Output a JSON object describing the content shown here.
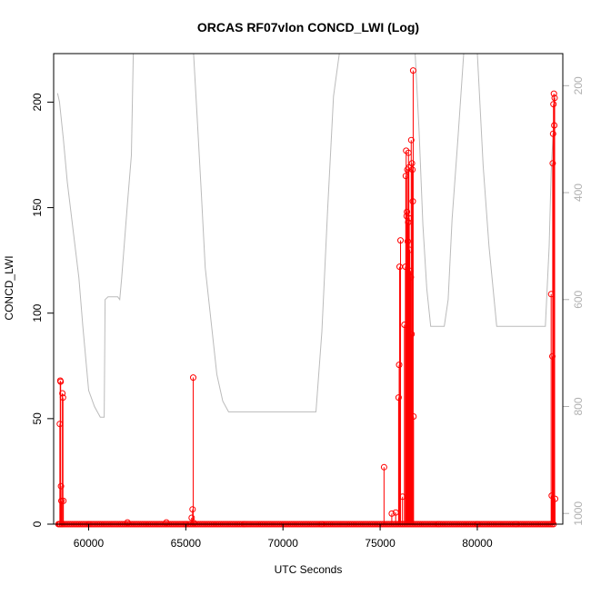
{
  "chart_data": {
    "type": "scatter",
    "title": "ORCAS RF07vlon CONCD_LWI (Log)",
    "xlabel": "UTC Seconds",
    "ylabel": "CONCD_LWI",
    "xlim": [
      58200,
      84400
    ],
    "ylim": [
      0,
      223
    ],
    "x_ticks": [
      60000,
      65000,
      70000,
      75000,
      80000
    ],
    "y_ticks": [
      0,
      50,
      100,
      150,
      200
    ],
    "y2_ticks": [
      200,
      400,
      600,
      800,
      1000
    ],
    "y2lim": [
      1020,
      140
    ],
    "series": [
      {
        "role": "primary",
        "color": "#ff0000",
        "x": [
          58500,
          58520,
          58540,
          58560,
          58580,
          58600,
          58620,
          58650,
          58680,
          58700,
          60000,
          62000,
          64000,
          65000,
          65300,
          65350,
          65380,
          65420,
          68000,
          72000,
          75200,
          75600,
          75800,
          75950,
          75980,
          76000,
          76050,
          76150,
          76250,
          76300,
          76320,
          76340,
          76360,
          76380,
          76400,
          76420,
          76440,
          76460,
          76480,
          76500,
          76520,
          76540,
          76560,
          76580,
          76600,
          76620,
          76640,
          76660,
          76680,
          76700,
          76720,
          78000,
          80000,
          82000,
          83800,
          83830,
          83860,
          83880,
          83900,
          83920,
          83940,
          83960,
          83980,
          84000
        ],
        "y": [
          0,
          47.5,
          68,
          67.5,
          18,
          11,
          0,
          62,
          60,
          11,
          0,
          0.8,
          0.8,
          0,
          3,
          7,
          69.5,
          0.5,
          0,
          0,
          27,
          5,
          5.5,
          60,
          75.5,
          122,
          134.5,
          13,
          94.5,
          122,
          165,
          177,
          146,
          148,
          168,
          134,
          143,
          176,
          169,
          145,
          130,
          27,
          120,
          117,
          182,
          90,
          171,
          168,
          153,
          215,
          51,
          0,
          0,
          0,
          109,
          13.5,
          79.5,
          171,
          185,
          199,
          204,
          189,
          202,
          12
        ]
      },
      {
        "role": "secondary",
        "color": "#bbbbbb",
        "x": [
          58400,
          58500,
          58700,
          58900,
          59200,
          59500,
          59700,
          60000,
          60300,
          60600,
          60800,
          60850,
          61000,
          61500,
          61600,
          61700,
          62000,
          62200,
          62300,
          63000,
          64000,
          65000,
          65400,
          65600,
          65800,
          66000,
          66300,
          66600,
          66900,
          67200,
          68000,
          69000,
          70000,
          71000,
          71700,
          72000,
          72300,
          72600,
          72900,
          73200,
          75000,
          76000,
          76500,
          76800,
          77000,
          77200,
          77400,
          77600,
          78000,
          78300,
          78500,
          78700,
          79000,
          79300,
          79500,
          79700,
          80000,
          80300,
          80600,
          81000,
          81200,
          81500,
          82000,
          83000,
          83500,
          83700,
          83800,
          84000
        ],
        "y": [
          214,
          230,
          300,
          380,
          470,
          560,
          650,
          770,
          800,
          820,
          820,
          600,
          595,
          595,
          600,
          560,
          420,
          330,
          140,
          140,
          140,
          140,
          140,
          270,
          400,
          540,
          640,
          740,
          790,
          810,
          810,
          810,
          810,
          810,
          810,
          660,
          430,
          220,
          140,
          140,
          140,
          140,
          140,
          140,
          280,
          460,
          580,
          650,
          650,
          650,
          600,
          450,
          300,
          140,
          140,
          140,
          140,
          350,
          500,
          650,
          650,
          650,
          650,
          650,
          650,
          500,
          360,
          218
        ]
      }
    ]
  }
}
